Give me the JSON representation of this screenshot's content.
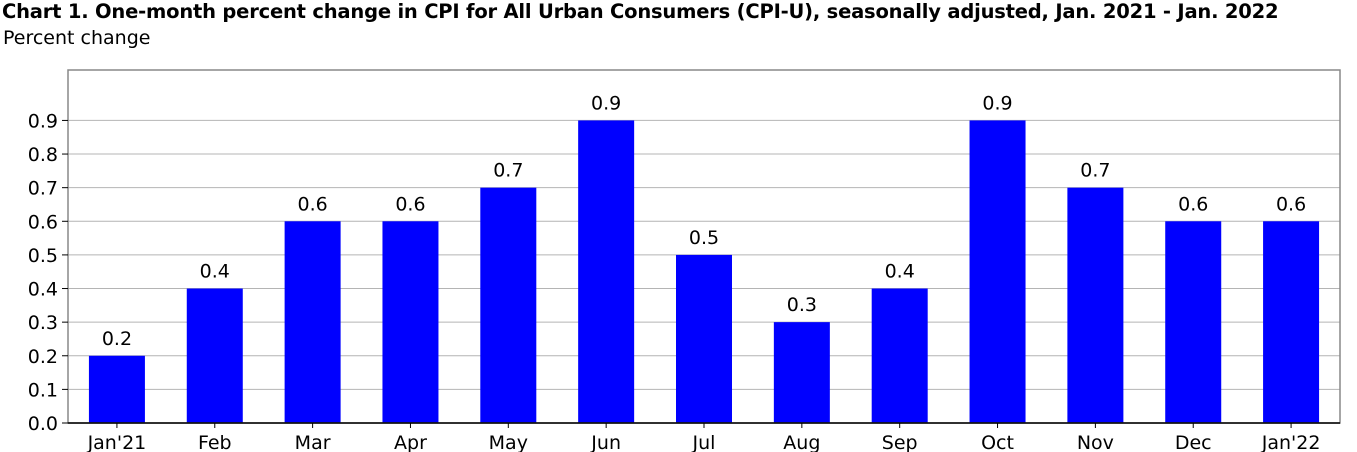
{
  "chart_data": {
    "type": "bar",
    "title": "Chart 1. One-month percent change in CPI for All Urban Consumers (CPI-U), seasonally adjusted, Jan. 2021 - Jan. 2022",
    "subtitle": "Percent change",
    "categories": [
      "Jan'21",
      "Feb",
      "Mar",
      "Apr",
      "May",
      "Jun",
      "Jul",
      "Aug",
      "Sep",
      "Oct",
      "Nov",
      "Dec",
      "Jan'22"
    ],
    "values": [
      0.2,
      0.4,
      0.6,
      0.6,
      0.7,
      0.9,
      0.5,
      0.3,
      0.4,
      0.9,
      0.7,
      0.6,
      0.6
    ],
    "data_labels": [
      "0.2",
      "0.4",
      "0.6",
      "0.6",
      "0.7",
      "0.9",
      "0.5",
      "0.3",
      "0.4",
      "0.9",
      "0.7",
      "0.6",
      "0.6"
    ],
    "yticks": [
      0.0,
      0.1,
      0.2,
      0.3,
      0.4,
      0.5,
      0.6,
      0.7,
      0.8,
      0.9
    ],
    "ytick_labels": [
      "0.0",
      "0.1",
      "0.2",
      "0.3",
      "0.4",
      "0.5",
      "0.6",
      "0.7",
      "0.8",
      "0.9"
    ],
    "ylim": [
      0,
      1.05
    ],
    "grid": true,
    "bar_color": "#0000ff"
  }
}
